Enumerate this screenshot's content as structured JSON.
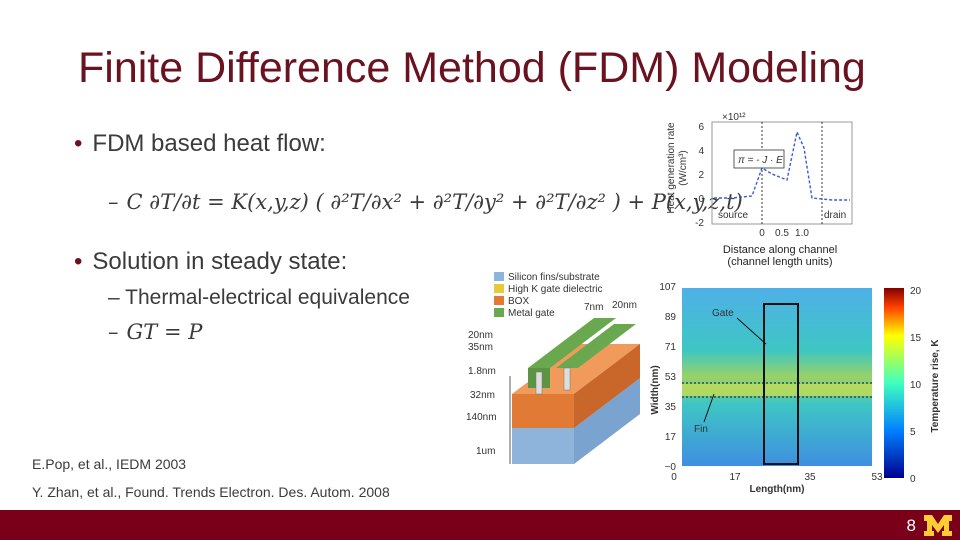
{
  "title": "Finite Difference Method (FDM) Modeling",
  "bullets": {
    "b1": "FDM based heat flow:",
    "eq1_prefix": "–",
    "eq1": "C ∂T/∂t = K(x,y,z) ( ∂²T/∂x² + ∂²T/∂y² + ∂²T/∂z² ) + P(x,y,z,t)",
    "b2": "Solution in steady state:",
    "b2_sub1": "– Thermal-electrical equivalence",
    "b2_sub2_prefix": "–",
    "b2_sub2": "GT = P"
  },
  "references": {
    "ref1": "E.Pop, et al., IEDM 2003",
    "ref2": "Y. Zhan, et al., Found. Trends Electron. Des. Autom. 2008"
  },
  "heat_plot": {
    "ylabel_line1": "Heat generation rate",
    "ylabel_line2": "(W/cm³)",
    "exponent": "×10¹²",
    "y_ticks": [
      "6",
      "4",
      "2",
      "0",
      "-2"
    ],
    "x_ticks": [
      "0",
      "0.5",
      "1.0"
    ],
    "formula": "π = - J · E",
    "source_label": "source",
    "drain_label": "drain",
    "caption_line1": "Distance along channel",
    "caption_line2": "(channel length units)"
  },
  "device": {
    "legend": [
      "Silicon fins/substrate",
      "High K gate dielectric",
      "BOX",
      "Metal gate"
    ],
    "legend_colors": [
      "#8fb4dc",
      "#e8c93a",
      "#e07a35",
      "#6aa84f"
    ],
    "dims": [
      "7nm",
      "20nm",
      "20nm",
      "35nm",
      "1.8nm",
      "32nm",
      "140nm",
      "1um"
    ]
  },
  "heatmap": {
    "y_ticks": [
      "107",
      "89",
      "71",
      "53",
      "35",
      "17",
      "~0"
    ],
    "x_ticks": [
      "0",
      "17",
      "35",
      "53"
    ],
    "xlabel": "Length(nm)",
    "ylabel": "Width(nm)",
    "gate_label": "Gate",
    "fin_label": "Fin",
    "colorbar_ticks": [
      "20",
      "15",
      "10",
      "5",
      "0"
    ],
    "colorbar_label": "Temperature rise, K"
  },
  "footer": {
    "page_number": "8"
  },
  "colors": {
    "title": "#6b1220",
    "footer": "#7a0019",
    "accent_gold": "#ffcc33"
  }
}
